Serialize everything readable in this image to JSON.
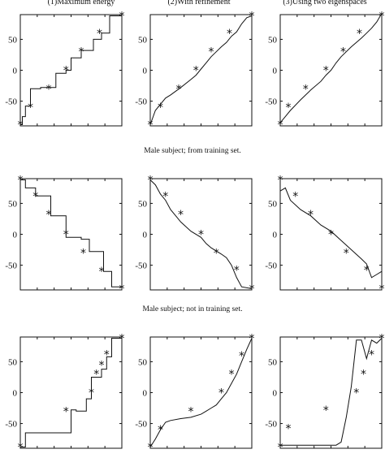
{
  "column_titles": [
    "(1)Maximum energy",
    "(2)With refinement",
    "(3)Using two eigenspaces"
  ],
  "row_captions": [
    "Male subject; from training set.",
    "Male subject; not in training set."
  ],
  "chart_data": [
    {
      "type": "line",
      "title": "(1)Maximum energy",
      "ylim": [
        -90,
        90
      ],
      "xlim": [
        0,
        1
      ],
      "yticks": [
        50,
        0,
        -50
      ],
      "ytick_labels": [
        "50",
        "0",
        "-50"
      ],
      "grid": false,
      "line": {
        "x": [
          0,
          0.02,
          0.02,
          0.05,
          0.05,
          0.1,
          0.1,
          0.2,
          0.2,
          0.35,
          0.35,
          0.45,
          0.45,
          0.5,
          0.5,
          0.6,
          0.6,
          0.72,
          0.72,
          0.8,
          0.8,
          0.88,
          0.88,
          1
        ],
        "y": [
          -88,
          -88,
          -75,
          -75,
          -58,
          -58,
          -30,
          -30,
          -28,
          -28,
          -5,
          -5,
          0,
          0,
          20,
          20,
          32,
          32,
          50,
          50,
          60,
          60,
          88,
          88
        ]
      },
      "markers": {
        "x": [
          0,
          0.1,
          0.28,
          0.45,
          0.6,
          0.78,
          1
        ],
        "y": [
          -88,
          -60,
          -30,
          0,
          30,
          60,
          88
        ]
      }
    },
    {
      "type": "line",
      "title": "(2)With refinement",
      "ylim": [
        -90,
        90
      ],
      "xlim": [
        0,
        1
      ],
      "yticks": [
        50,
        0,
        -50
      ],
      "ytick_labels": [
        "50",
        "0",
        "-50"
      ],
      "grid": false,
      "line": {
        "x": [
          0,
          0.05,
          0.1,
          0.15,
          0.2,
          0.3,
          0.4,
          0.45,
          0.5,
          0.55,
          0.6,
          0.65,
          0.7,
          0.75,
          0.8,
          0.85,
          0.9,
          0.95,
          1
        ],
        "y": [
          -88,
          -65,
          -55,
          -45,
          -40,
          -28,
          -15,
          -8,
          2,
          12,
          22,
          30,
          38,
          45,
          55,
          62,
          75,
          85,
          88
        ]
      },
      "markers": {
        "x": [
          0,
          0.1,
          0.28,
          0.45,
          0.6,
          0.78,
          1
        ],
        "y": [
          -88,
          -60,
          -30,
          0,
          30,
          60,
          88
        ]
      }
    },
    {
      "type": "line",
      "title": "(3)Using two eigenspaces",
      "ylim": [
        -90,
        90
      ],
      "xlim": [
        0,
        1
      ],
      "yticks": [
        50,
        0,
        -50
      ],
      "ytick_labels": [
        "50",
        "0",
        "-50"
      ],
      "grid": false,
      "line": {
        "x": [
          0,
          0.05,
          0.1,
          0.2,
          0.3,
          0.4,
          0.45,
          0.5,
          0.55,
          0.6,
          0.7,
          0.8,
          0.85,
          0.9,
          0.95,
          1
        ],
        "y": [
          -85,
          -75,
          -65,
          -48,
          -32,
          -18,
          -8,
          0,
          12,
          22,
          38,
          52,
          60,
          68,
          78,
          92
        ]
      },
      "markers": {
        "x": [
          0,
          0.08,
          0.25,
          0.45,
          0.62,
          0.78,
          1
        ],
        "y": [
          -88,
          -60,
          -30,
          0,
          30,
          60,
          88
        ]
      }
    },
    {
      "type": "line",
      "ylim": [
        -90,
        90
      ],
      "xlim": [
        0,
        1
      ],
      "yticks": [
        50,
        0,
        -50
      ],
      "ytick_labels": [
        "50",
        "0",
        "-50"
      ],
      "grid": false,
      "line": {
        "x": [
          0,
          0.05,
          0.05,
          0.15,
          0.15,
          0.3,
          0.3,
          0.45,
          0.45,
          0.6,
          0.6,
          0.68,
          0.68,
          0.82,
          0.82,
          0.9,
          0.9,
          1
        ],
        "y": [
          88,
          88,
          75,
          75,
          62,
          62,
          30,
          30,
          -5,
          -5,
          -8,
          -8,
          -28,
          -28,
          -60,
          -60,
          -85,
          -85
        ]
      },
      "markers": {
        "x": [
          0,
          0.15,
          0.28,
          0.45,
          0.62,
          0.8,
          1
        ],
        "y": [
          88,
          62,
          32,
          0,
          -30,
          -60,
          -88
        ]
      }
    },
    {
      "type": "line",
      "ylim": [
        -90,
        90
      ],
      "xlim": [
        0,
        1
      ],
      "yticks": [
        50,
        0,
        -50
      ],
      "ytick_labels": [
        "50",
        "0",
        "-50"
      ],
      "grid": false,
      "line": {
        "x": [
          0,
          0.05,
          0.1,
          0.15,
          0.2,
          0.25,
          0.3,
          0.4,
          0.5,
          0.55,
          0.6,
          0.7,
          0.75,
          0.8,
          0.85,
          0.9,
          1
        ],
        "y": [
          88,
          80,
          65,
          55,
          40,
          30,
          20,
          5,
          -5,
          -15,
          -22,
          -32,
          -38,
          -50,
          -70,
          -85,
          -88
        ]
      },
      "markers": {
        "x": [
          0,
          0.15,
          0.3,
          0.5,
          0.65,
          0.85,
          1
        ],
        "y": [
          88,
          62,
          32,
          0,
          -30,
          -58,
          -88
        ]
      }
    },
    {
      "type": "line",
      "ylim": [
        -90,
        90
      ],
      "xlim": [
        0,
        1
      ],
      "yticks": [
        50,
        0,
        -50
      ],
      "ytick_labels": [
        "50",
        "0",
        "-50"
      ],
      "grid": false,
      "line": {
        "x": [
          0,
          0.05,
          0.1,
          0.2,
          0.3,
          0.4,
          0.5,
          0.6,
          0.7,
          0.8,
          0.85,
          0.9,
          0.95,
          1
        ],
        "y": [
          70,
          75,
          55,
          40,
          30,
          15,
          5,
          -10,
          -25,
          -40,
          -48,
          -70,
          -65,
          -60
        ]
      },
      "markers": {
        "x": [
          0,
          0.15,
          0.3,
          0.5,
          0.65,
          0.85,
          1
        ],
        "y": [
          88,
          62,
          32,
          0,
          -30,
          -58,
          -88
        ]
      }
    },
    {
      "type": "line",
      "ylim": [
        -90,
        90
      ],
      "xlim": [
        0,
        1
      ],
      "yticks": [
        50,
        0,
        -50
      ],
      "ytick_labels": [
        "50",
        "0",
        "-50"
      ],
      "grid": false,
      "line": {
        "x": [
          0,
          0.05,
          0.05,
          0.5,
          0.5,
          0.55,
          0.55,
          0.65,
          0.65,
          0.7,
          0.7,
          0.8,
          0.8,
          0.85,
          0.85,
          0.9,
          0.9,
          1
        ],
        "y": [
          -88,
          -88,
          -65,
          -65,
          -28,
          -28,
          -30,
          -30,
          -10,
          -10,
          25,
          25,
          38,
          38,
          58,
          58,
          88,
          88
        ]
      },
      "markers": {
        "x": [
          0,
          0.45,
          0.7,
          0.75,
          0.8,
          0.85,
          1
        ],
        "y": [
          -88,
          -30,
          0,
          30,
          45,
          62,
          88
        ]
      }
    },
    {
      "type": "line",
      "ylim": [
        -90,
        90
      ],
      "xlim": [
        0,
        1
      ],
      "yticks": [
        50,
        0,
        -50
      ],
      "ytick_labels": [
        "50",
        "0",
        "-50"
      ],
      "grid": false,
      "line": {
        "x": [
          0,
          0.05,
          0.1,
          0.15,
          0.2,
          0.3,
          0.4,
          0.5,
          0.55,
          0.6,
          0.65,
          0.7,
          0.75,
          0.8,
          0.85,
          0.9,
          0.95,
          1
        ],
        "y": [
          -88,
          -75,
          -60,
          -48,
          -45,
          -42,
          -40,
          -35,
          -30,
          -25,
          -20,
          -10,
          0,
          15,
          30,
          50,
          70,
          88
        ]
      },
      "markers": {
        "x": [
          0,
          0.1,
          0.4,
          0.7,
          0.8,
          0.9,
          1
        ],
        "y": [
          -88,
          -60,
          -30,
          0,
          30,
          60,
          88
        ]
      }
    },
    {
      "type": "line",
      "ylim": [
        -90,
        90
      ],
      "xlim": [
        0,
        1
      ],
      "yticks": [
        50,
        0,
        -50
      ],
      "ytick_labels": [
        "50",
        "0",
        "-50"
      ],
      "grid": false,
      "line": {
        "x": [
          0,
          0.55,
          0.6,
          0.65,
          0.7,
          0.75,
          0.8,
          0.85,
          0.9,
          0.95,
          1
        ],
        "y": [
          -85,
          -85,
          -80,
          -40,
          10,
          85,
          85,
          55,
          85,
          80,
          88
        ]
      },
      "markers": {
        "x": [
          0,
          0.08,
          0.45,
          0.75,
          0.82,
          0.9,
          1
        ],
        "y": [
          -88,
          -58,
          -28,
          0,
          30,
          62,
          88
        ]
      }
    }
  ]
}
